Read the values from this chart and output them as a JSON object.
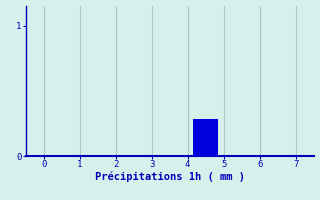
{
  "title": "",
  "xlabel": "Précipitations 1h ( mm )",
  "bar_x": [
    4.5
  ],
  "bar_height": [
    0.28
  ],
  "bar_color": "#0000dd",
  "bar_width": 0.7,
  "xlim": [
    -0.5,
    7.5
  ],
  "ylim": [
    0,
    1.15
  ],
  "yticks": [
    0,
    1
  ],
  "ytick_labels": [
    "0",
    "1"
  ],
  "xticks": [
    0,
    1,
    2,
    3,
    4,
    5,
    6,
    7
  ],
  "background_color": "#d8f0ec",
  "plot_bg_color": "#d8f0ec",
  "grid_color": "#a8c8c4",
  "axis_color": "#0000bb",
  "label_color": "#0000bb",
  "tick_color": "#0000bb",
  "xlabel_fontsize": 7.5,
  "tick_fontsize": 6.5
}
